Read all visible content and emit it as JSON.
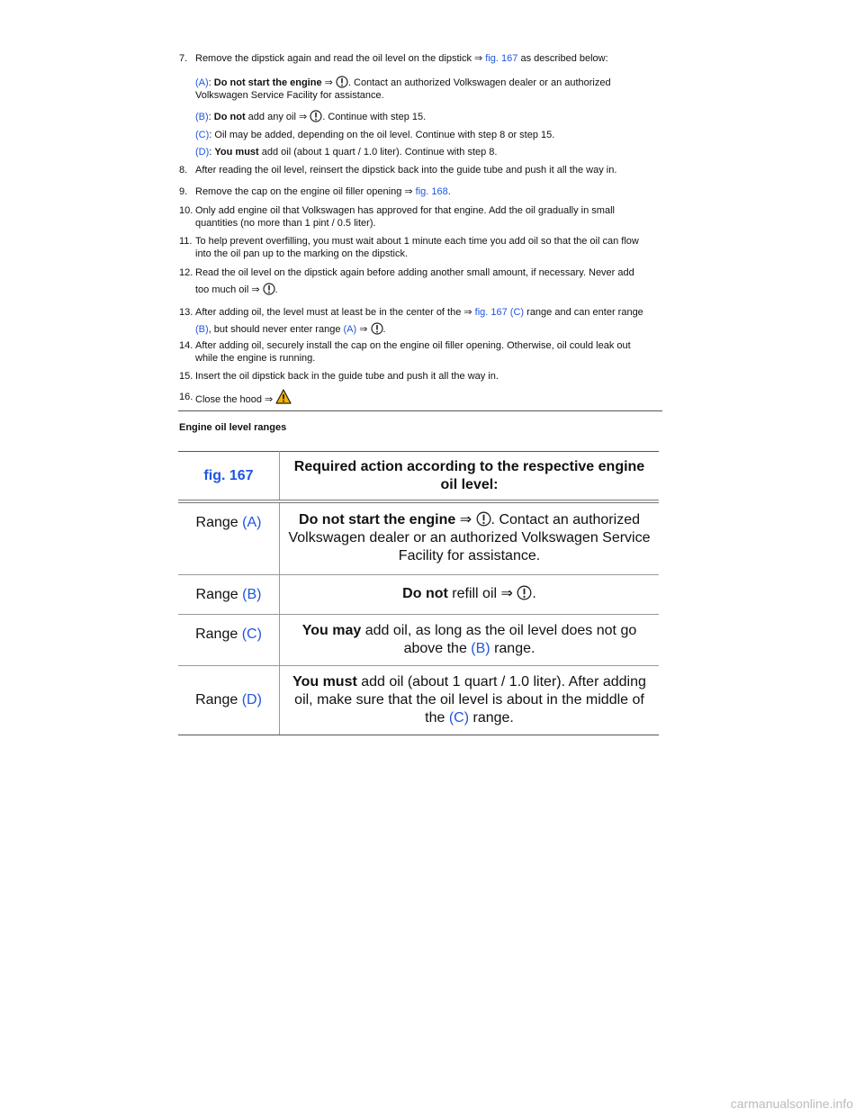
{
  "steps": [
    {
      "number": "7.",
      "text": [
        "Remove the dipstick again and read the oil level on the dipstick ⇒ ",
        "fig. 167",
        " as described below:"
      ],
      "items": [
        {
          "label": "(A)",
          "text": [
            ": ",
            "Do not start the engine",
            " ⇒ ",
            ". Contact an authorized Volkswagen dealer or an authorized Volkswagen Service Facility for assistance."
          ]
        },
        {
          "label": "(B)",
          "text": [
            ": ",
            "Do not",
            " add any oil ⇒ ",
            ". Continue with step 15."
          ]
        },
        {
          "label": "(C)",
          "text": [
            ": Oil may be added, depending on the oil level. Continue with step 8 or step 15."
          ]
        },
        {
          "label": "(D)",
          "text": [
            ": ",
            "You must",
            " add oil (about 1 quart / 1.0 liter). Continue with step 8."
          ]
        }
      ]
    },
    {
      "number": "8.",
      "text": [
        "After reading the oil level, reinsert the dipstick back into the guide tube and push it all the way in."
      ]
    },
    {
      "number": "9.",
      "text": [
        "Remove the cap on the engine oil filler opening ⇒ ",
        "fig. 168",
        "."
      ]
    },
    {
      "number": "10.",
      "text": [
        "Only add engine oil that Volkswagen has approved for that engine. Add the oil gradually in small quantities (no more than 1 pint / 0.5 liter)."
      ]
    },
    {
      "number": "11.",
      "text": [
        "To help prevent overfilling, you must wait about 1 minute each time you add oil so that the oil can flow into the oil pan up to the marking on the dipstick."
      ]
    },
    {
      "number": "12.",
      "text": [
        "Read the oil level on the dipstick again before adding another small amount, if necessary. Never add too much oil ⇒ ",
        "."
      ]
    },
    {
      "number": "13.",
      "text": [
        "After adding oil, the level must at least be in the center of the ⇒ ",
        "fig. 167 (C)",
        " range and can enter range ",
        "(B)",
        ", but should never enter range ",
        "(A)",
        " ⇒ ",
        "."
      ]
    },
    {
      "number": "14.",
      "text": [
        "After adding oil, securely install the cap on the engine oil filler opening. Otherwise, oil could leak out while the engine is running."
      ]
    },
    {
      "number": "15.",
      "text": [
        "Insert the oil dipstick back in the guide tube and push it all the way in."
      ]
    },
    {
      "number": "16.",
      "text": [
        "Close the hood ⇒ "
      ]
    }
  ],
  "table": {
    "caption": "Engine oil level ranges",
    "header": [
      "fig. 167",
      "Required action according to the respective engine oil level:"
    ],
    "rows": [
      [
        [
          "Range ",
          "(A)"
        ],
        [
          "Do not start the engine",
          " ⇒ ",
          ". Contact an authorized Volkswagen dealer or an authorized Volkswagen Service Facility for assistance."
        ]
      ],
      [
        [
          "Range ",
          "(B)"
        ],
        [
          "Do not",
          " refill oil ⇒ ",
          "."
        ]
      ],
      [
        [
          "Range ",
          "(C)"
        ],
        [
          "You may",
          " add oil, as long as the oil level does not go above the ",
          "(B)",
          " range."
        ]
      ],
      [
        [
          "Range ",
          "(D)"
        ],
        [
          "You must",
          " add oil (about 1 quart / 1.0 liter). After adding oil, make sure that the oil level is about in the middle of the ",
          "(C)",
          " range."
        ]
      ]
    ]
  },
  "watermark": "carmanualsonline.info"
}
